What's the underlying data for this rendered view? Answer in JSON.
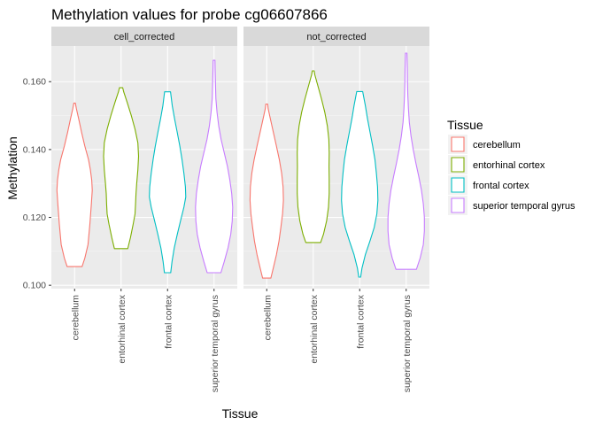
{
  "chart_data": {
    "type": "violin",
    "title": "Methylation values for probe cg06607866",
    "xlabel": "Tissue",
    "ylabel": "Methylation",
    "ylim": [
      0.099,
      0.1705
    ],
    "yticks": [
      0.1,
      0.12,
      0.14,
      0.16
    ],
    "ytick_labels": [
      "0.100",
      "0.120",
      "0.140",
      "0.160"
    ],
    "categories": [
      "cerebellum",
      "entorhinal cortex",
      "frontal cortex",
      "superior temporal gyrus"
    ],
    "legend": {
      "title": "Tissue",
      "placement": "right",
      "entries": [
        "cerebellum",
        "entorhinal cortex",
        "frontal cortex",
        "superior temporal gyrus"
      ]
    },
    "colors": [
      "#F8766D",
      "#7CAE00",
      "#00BFC4",
      "#C77CFF"
    ],
    "panels": [
      {
        "label": "cell_corrected",
        "violins": [
          {
            "category": "cerebellum",
            "min": 0.1055,
            "max": 0.1537,
            "profile": [
              [
                0.1055,
                0.4
              ],
              [
                0.108,
                0.55
              ],
              [
                0.112,
                0.72
              ],
              [
                0.118,
                0.82
              ],
              [
                0.124,
                0.9
              ],
              [
                0.128,
                0.95
              ],
              [
                0.131,
                0.92
              ],
              [
                0.134,
                0.85
              ],
              [
                0.137,
                0.75
              ],
              [
                0.141,
                0.55
              ],
              [
                0.145,
                0.38
              ],
              [
                0.149,
                0.22
              ],
              [
                0.152,
                0.1
              ],
              [
                0.1537,
                0.04
              ]
            ]
          },
          {
            "category": "entorhinal cortex",
            "min": 0.1108,
            "max": 0.1582,
            "profile": [
              [
                0.1108,
                0.36
              ],
              [
                0.114,
                0.5
              ],
              [
                0.118,
                0.65
              ],
              [
                0.121,
                0.75
              ],
              [
                0.124,
                0.78
              ],
              [
                0.127,
                0.8
              ],
              [
                0.13,
                0.84
              ],
              [
                0.134,
                0.9
              ],
              [
                0.138,
                0.94
              ],
              [
                0.142,
                0.9
              ],
              [
                0.146,
                0.75
              ],
              [
                0.15,
                0.55
              ],
              [
                0.154,
                0.32
              ],
              [
                0.157,
                0.14
              ],
              [
                0.1582,
                0.09
              ]
            ]
          },
          {
            "category": "frontal cortex",
            "min": 0.1037,
            "max": 0.157,
            "profile": [
              [
                0.1037,
                0.17
              ],
              [
                0.107,
                0.24
              ],
              [
                0.111,
                0.36
              ],
              [
                0.115,
                0.52
              ],
              [
                0.119,
                0.7
              ],
              [
                0.123,
                0.88
              ],
              [
                0.126,
                0.98
              ],
              [
                0.129,
                0.96
              ],
              [
                0.133,
                0.88
              ],
              [
                0.137,
                0.78
              ],
              [
                0.141,
                0.66
              ],
              [
                0.145,
                0.52
              ],
              [
                0.149,
                0.38
              ],
              [
                0.153,
                0.25
              ],
              [
                0.157,
                0.16
              ]
            ]
          },
          {
            "category": "superior temporal gyrus",
            "min": 0.1037,
            "max": 0.1663,
            "profile": [
              [
                0.1037,
                0.37
              ],
              [
                0.107,
                0.55
              ],
              [
                0.111,
                0.75
              ],
              [
                0.115,
                0.9
              ],
              [
                0.119,
                0.98
              ],
              [
                0.123,
                1.0
              ],
              [
                0.127,
                0.95
              ],
              [
                0.131,
                0.85
              ],
              [
                0.135,
                0.72
              ],
              [
                0.139,
                0.55
              ],
              [
                0.143,
                0.38
              ],
              [
                0.147,
                0.25
              ],
              [
                0.151,
                0.16
              ],
              [
                0.155,
                0.1
              ],
              [
                0.159,
                0.08
              ],
              [
                0.163,
                0.06
              ],
              [
                0.1663,
                0.05
              ]
            ]
          }
        ]
      },
      {
        "label": "not_corrected",
        "violins": [
          {
            "category": "cerebellum",
            "min": 0.1021,
            "max": 0.1534,
            "profile": [
              [
                0.1021,
                0.22
              ],
              [
                0.105,
                0.35
              ],
              [
                0.109,
                0.52
              ],
              [
                0.113,
                0.66
              ],
              [
                0.117,
                0.76
              ],
              [
                0.121,
                0.85
              ],
              [
                0.125,
                0.9
              ],
              [
                0.129,
                0.88
              ],
              [
                0.133,
                0.8
              ],
              [
                0.137,
                0.68
              ],
              [
                0.141,
                0.52
              ],
              [
                0.145,
                0.36
              ],
              [
                0.149,
                0.2
              ],
              [
                0.152,
                0.08
              ],
              [
                0.1534,
                0.05
              ]
            ]
          },
          {
            "category": "entorhinal cortex",
            "min": 0.1126,
            "max": 0.1632,
            "profile": [
              [
                0.1126,
                0.4
              ],
              [
                0.115,
                0.55
              ],
              [
                0.119,
                0.72
              ],
              [
                0.123,
                0.82
              ],
              [
                0.127,
                0.86
              ],
              [
                0.131,
                0.86
              ],
              [
                0.135,
                0.85
              ],
              [
                0.139,
                0.86
              ],
              [
                0.143,
                0.84
              ],
              [
                0.147,
                0.76
              ],
              [
                0.151,
                0.62
              ],
              [
                0.155,
                0.44
              ],
              [
                0.159,
                0.24
              ],
              [
                0.162,
                0.09
              ],
              [
                0.1632,
                0.05
              ]
            ]
          },
          {
            "category": "frontal cortex",
            "min": 0.1024,
            "max": 0.1571,
            "profile": [
              [
                0.1024,
                0.05
              ],
              [
                0.105,
                0.12
              ],
              [
                0.109,
                0.3
              ],
              [
                0.113,
                0.55
              ],
              [
                0.117,
                0.78
              ],
              [
                0.121,
                0.92
              ],
              [
                0.125,
                0.98
              ],
              [
                0.129,
                0.96
              ],
              [
                0.133,
                0.9
              ],
              [
                0.137,
                0.82
              ],
              [
                0.141,
                0.7
              ],
              [
                0.145,
                0.56
              ],
              [
                0.149,
                0.42
              ],
              [
                0.153,
                0.3
              ],
              [
                0.1571,
                0.16
              ]
            ]
          },
          {
            "category": "superior temporal gyrus",
            "min": 0.1047,
            "max": 0.1684,
            "profile": [
              [
                0.1047,
                0.55
              ],
              [
                0.108,
                0.75
              ],
              [
                0.112,
                0.92
              ],
              [
                0.116,
                0.98
              ],
              [
                0.12,
                0.98
              ],
              [
                0.124,
                0.92
              ],
              [
                0.128,
                0.82
              ],
              [
                0.132,
                0.68
              ],
              [
                0.136,
                0.52
              ],
              [
                0.14,
                0.38
              ],
              [
                0.144,
                0.26
              ],
              [
                0.148,
                0.17
              ],
              [
                0.152,
                0.12
              ],
              [
                0.156,
                0.09
              ],
              [
                0.16,
                0.07
              ],
              [
                0.164,
                0.06
              ],
              [
                0.1684,
                0.04
              ]
            ]
          }
        ]
      }
    ]
  }
}
